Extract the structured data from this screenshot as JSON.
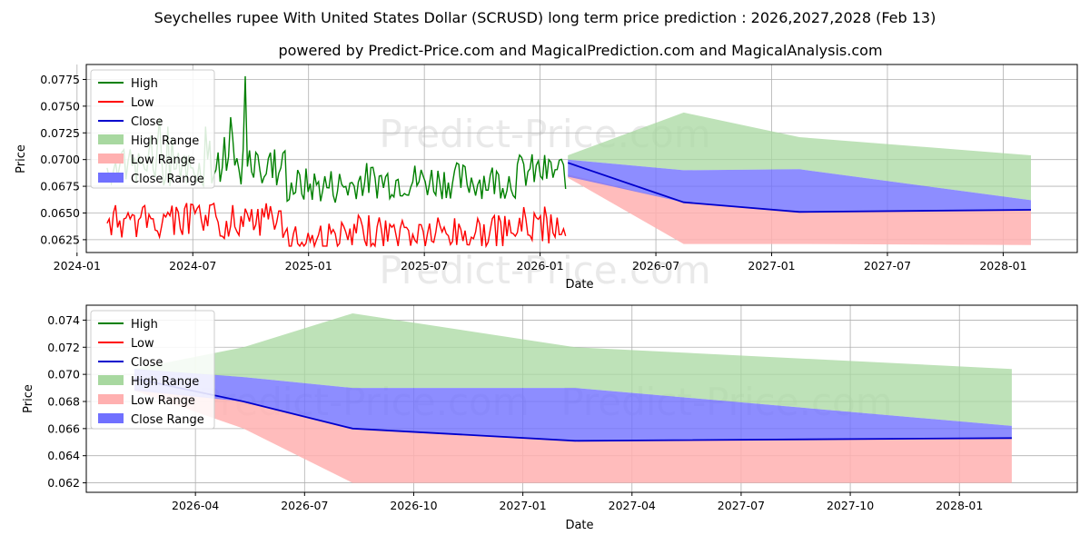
{
  "title": "Seychelles rupee With United States Dollar (SCRUSD) long term price prediction : 2026,2027,2028 (Feb 13)",
  "subtitle": "powered by Predict-Price.com and MagicalPrediction.com and MagicalAnalysis.com",
  "watermark": "Predict-Price.com",
  "colors": {
    "high": "#008000",
    "low": "#ff0000",
    "close": "#0000cd",
    "high_range": "#a8d8a0",
    "low_range": "#ffb0b0",
    "close_range": "#7070ff"
  },
  "chart_data": [
    {
      "type": "line",
      "title": "",
      "xlabel": "Date",
      "ylabel": "Price",
      "grid": true,
      "legend_position": "top-left",
      "xlim": [
        2024.04,
        2028.32
      ],
      "ylim": [
        0.0613,
        0.0789
      ],
      "x_tick_values": [
        2024.0,
        2024.5,
        2025.0,
        2025.5,
        2026.0,
        2026.5,
        2027.0,
        2027.5,
        2028.0
      ],
      "x_tick_labels": [
        "2024-01",
        "2024-07",
        "2025-01",
        "2025-07",
        "2026-01",
        "2026-07",
        "2027-01",
        "2027-07",
        "2028-01"
      ],
      "y_ticks": [
        "0.0625",
        "0.0650",
        "0.0675",
        "0.0700",
        "0.0725",
        "0.0750",
        "0.0775"
      ],
      "legend": [
        "High",
        "Low",
        "Close",
        "High Range",
        "Low Range",
        "Close Range"
      ],
      "history": {
        "x_start": 2024.13,
        "x_end": 2026.11,
        "samples": 220,
        "high_peak": 0.0778,
        "high_peak_x": 2024.73,
        "low_min": 0.0619,
        "series": [
          "High",
          "Low"
        ]
      },
      "forecast": {
        "x": [
          2026.12,
          2026.62,
          2027.12,
          2028.12
        ],
        "high_upper": [
          0.0704,
          0.0744,
          0.0721,
          0.0704
        ],
        "high_lower": [
          0.07,
          0.069,
          0.0691,
          0.0662
        ],
        "low_upper": [
          0.0686,
          0.066,
          0.0651,
          0.0653
        ],
        "low_lower": [
          0.0683,
          0.0621,
          0.0621,
          0.062
        ],
        "close_upper": [
          0.07,
          0.069,
          0.0691,
          0.0662
        ],
        "close_lower": [
          0.0684,
          0.066,
          0.0651,
          0.0653
        ],
        "close": [
          0.0697,
          0.066,
          0.0651,
          0.0653
        ]
      }
    },
    {
      "type": "line",
      "title": "",
      "xlabel": "Date",
      "ylabel": "Price",
      "grid": true,
      "legend_position": "top-left",
      "xlim": [
        2026.0,
        2028.27
      ],
      "ylim": [
        0.0613,
        0.0751
      ],
      "x_tick_values": [
        2026.25,
        2026.5,
        2026.75,
        2027.0,
        2027.25,
        2027.5,
        2027.75,
        2028.0
      ],
      "x_tick_labels": [
        "2026-04",
        "2026-07",
        "2026-10",
        "2027-01",
        "2027-04",
        "2027-07",
        "2027-10",
        "2028-01"
      ],
      "y_ticks": [
        "0.062",
        "0.064",
        "0.066",
        "0.068",
        "0.070",
        "0.072",
        "0.074"
      ],
      "legend": [
        "High",
        "Low",
        "Close",
        "High Range",
        "Low Range",
        "Close Range"
      ],
      "forecast": {
        "x": [
          2026.11,
          2026.36,
          2026.61,
          2027.12,
          2028.12
        ],
        "high_upper": [
          0.0704,
          0.072,
          0.0745,
          0.072,
          0.0704
        ],
        "high_lower": [
          0.0703,
          0.0698,
          0.069,
          0.069,
          0.0662
        ],
        "low_upper": [
          0.069,
          0.068,
          0.066,
          0.0651,
          0.0653
        ],
        "low_lower": [
          0.0688,
          0.066,
          0.062,
          0.062,
          0.062
        ],
        "close_upper": [
          0.0704,
          0.0698,
          0.069,
          0.069,
          0.0662
        ],
        "close_lower": [
          0.0688,
          0.068,
          0.066,
          0.0651,
          0.0653
        ],
        "close": [
          0.0697,
          0.068,
          0.066,
          0.0651,
          0.0653
        ]
      }
    }
  ]
}
